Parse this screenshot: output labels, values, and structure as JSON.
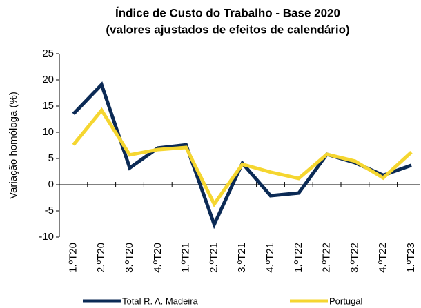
{
  "chart_data": {
    "type": "line",
    "title": "Índice de Custo do Trabalho - Base 2020",
    "subtitle": "(valores ajustados de efeitos de calendário)",
    "y_label": "Variação homóloga (%)",
    "categories": [
      "1.ºT20",
      "2.ºT20",
      "3.ºT20",
      "4.ºT20",
      "1.ºT21",
      "2.ºT21",
      "3.ºT21",
      "4.ºT21",
      "1.ºT22",
      "2.ºT22",
      "3.ºT22",
      "4.ºT22",
      "1.ºT23"
    ],
    "series": [
      {
        "name": "Total R. A. Madeira",
        "color": "#0b2a55",
        "values": [
          13.5,
          19.1,
          3.2,
          7.0,
          7.6,
          -7.6,
          4.1,
          -2.1,
          -1.6,
          5.8,
          4.2,
          1.8,
          3.7
        ]
      },
      {
        "name": "Portugal",
        "color": "#f5d630",
        "values": [
          7.6,
          14.2,
          5.7,
          6.7,
          7.1,
          -3.7,
          3.9,
          2.4,
          1.2,
          5.8,
          4.5,
          1.3,
          6.2
        ]
      }
    ],
    "ylim": [
      -10,
      25
    ],
    "yticks": [
      -10,
      -5,
      0,
      5,
      10,
      15,
      20,
      25
    ],
    "grid": false
  }
}
